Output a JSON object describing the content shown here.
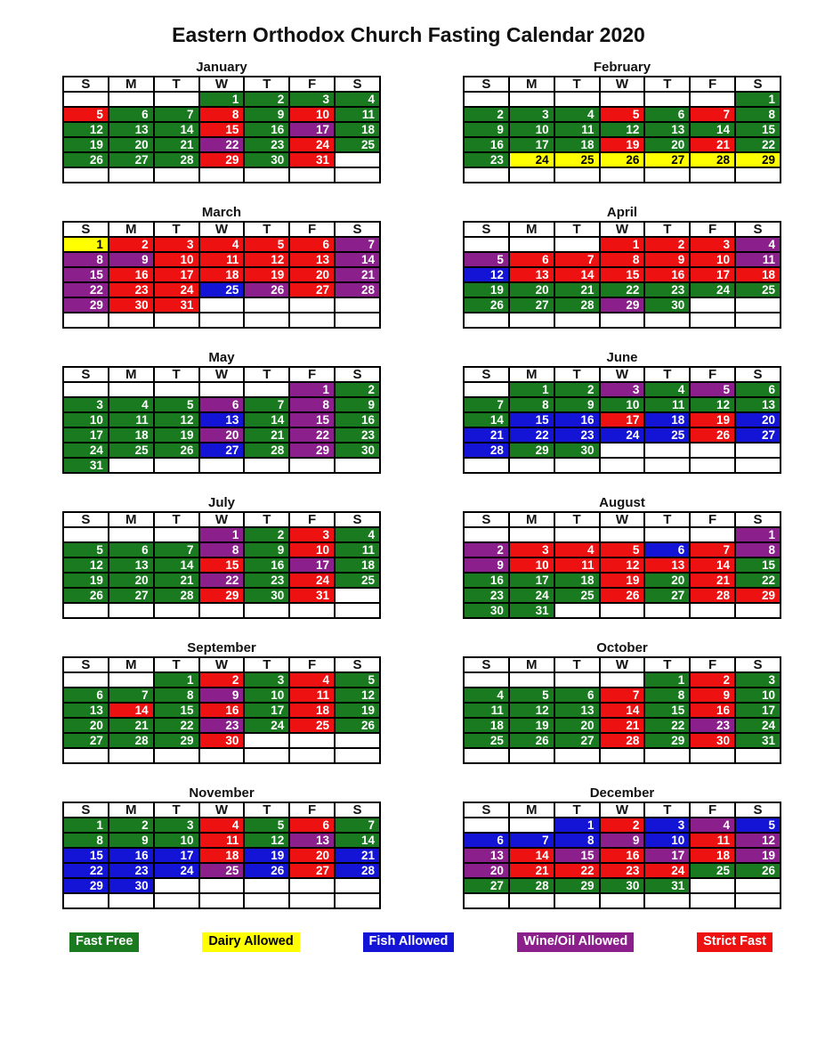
{
  "title": "Eastern Orthodox Church Fasting Calendar 2020",
  "day_headers": [
    "S",
    "M",
    "T",
    "W",
    "T",
    "F",
    "S"
  ],
  "colors": {
    "green": "#1A7A20",
    "yellow": "#FFFF00",
    "blue": "#1414D6",
    "purple": "#8B1F8B",
    "red": "#EE1111"
  },
  "text_colors": {
    "on_dark": "#FFFFFF",
    "on_light": "#000000"
  },
  "legend": [
    {
      "label": "Fast Free",
      "key": "green"
    },
    {
      "label": "Dairy Allowed",
      "key": "yellow"
    },
    {
      "label": "Fish Allowed",
      "key": "blue"
    },
    {
      "label": "Wine/Oil Allowed",
      "key": "purple"
    },
    {
      "label": "Strict Fast",
      "key": "red"
    }
  ],
  "months": [
    {
      "name": "January",
      "weeks": [
        [
          "",
          "",
          "",
          "1|green",
          "2|green",
          "3|green",
          "4|green"
        ],
        [
          "5|red",
          "6|green",
          "7|green",
          "8|red",
          "9|green",
          "10|red",
          "11|green"
        ],
        [
          "12|green",
          "13|green",
          "14|green",
          "15|red",
          "16|green",
          "17|purple",
          "18|green"
        ],
        [
          "19|green",
          "20|green",
          "21|green",
          "22|purple",
          "23|green",
          "24|red",
          "25|green"
        ],
        [
          "26|green",
          "27|green",
          "28|green",
          "29|red",
          "30|green",
          "31|red",
          ""
        ],
        [
          "",
          "",
          "",
          "",
          "",
          "",
          ""
        ]
      ]
    },
    {
      "name": "February",
      "weeks": [
        [
          "",
          "",
          "",
          "",
          "",
          "",
          "1|green"
        ],
        [
          "2|green",
          "3|green",
          "4|green",
          "5|red",
          "6|green",
          "7|red",
          "8|green"
        ],
        [
          "9|green",
          "10|green",
          "11|green",
          "12|green",
          "13|green",
          "14|green",
          "15|green"
        ],
        [
          "16|green",
          "17|green",
          "18|green",
          "19|red",
          "20|green",
          "21|red",
          "22|green"
        ],
        [
          "23|green",
          "24|yellow",
          "25|yellow",
          "26|yellow",
          "27|yellow",
          "28|yellow",
          "29|yellow"
        ],
        [
          "",
          "",
          "",
          "",
          "",
          "",
          ""
        ]
      ]
    },
    {
      "name": "March",
      "weeks": [
        [
          "1|yellow",
          "2|red",
          "3|red",
          "4|red",
          "5|red",
          "6|red",
          "7|purple"
        ],
        [
          "8|purple",
          "9|purple",
          "10|red",
          "11|red",
          "12|red",
          "13|red",
          "14|purple"
        ],
        [
          "15|purple",
          "16|red",
          "17|red",
          "18|red",
          "19|red",
          "20|red",
          "21|purple"
        ],
        [
          "22|purple",
          "23|red",
          "24|red",
          "25|blue",
          "26|purple",
          "27|red",
          "28|purple"
        ],
        [
          "29|purple",
          "30|red",
          "31|red",
          "",
          "",
          "",
          ""
        ],
        [
          "",
          "",
          "",
          "",
          "",
          "",
          ""
        ]
      ]
    },
    {
      "name": "April",
      "weeks": [
        [
          "",
          "",
          "",
          "1|red",
          "2|red",
          "3|red",
          "4|purple"
        ],
        [
          "5|purple",
          "6|red",
          "7|red",
          "8|red",
          "9|red",
          "10|red",
          "11|purple"
        ],
        [
          "12|blue",
          "13|red",
          "14|red",
          "15|red",
          "16|red",
          "17|red",
          "18|red"
        ],
        [
          "19|green",
          "20|green",
          "21|green",
          "22|green",
          "23|green",
          "24|green",
          "25|green"
        ],
        [
          "26|green",
          "27|green",
          "28|green",
          "29|purple",
          "30|green",
          "",
          ""
        ],
        [
          "",
          "",
          "",
          "",
          "",
          "",
          ""
        ]
      ]
    },
    {
      "name": "May",
      "weeks": [
        [
          "",
          "",
          "",
          "",
          "",
          "1|purple",
          "2|green"
        ],
        [
          "3|green",
          "4|green",
          "5|green",
          "6|purple",
          "7|green",
          "8|purple",
          "9|green"
        ],
        [
          "10|green",
          "11|green",
          "12|green",
          "13|blue",
          "14|green",
          "15|purple",
          "16|green"
        ],
        [
          "17|green",
          "18|green",
          "19|green",
          "20|purple",
          "21|green",
          "22|purple",
          "23|green"
        ],
        [
          "24|green",
          "25|green",
          "26|green",
          "27|blue",
          "28|green",
          "29|purple",
          "30|green"
        ],
        [
          "31|green",
          "",
          "",
          "",
          "",
          "",
          ""
        ]
      ]
    },
    {
      "name": "June",
      "weeks": [
        [
          "",
          "1|green",
          "2|green",
          "3|purple",
          "4|green",
          "5|purple",
          "6|green"
        ],
        [
          "7|green",
          "8|green",
          "9|green",
          "10|green",
          "11|green",
          "12|green",
          "13|green"
        ],
        [
          "14|green",
          "15|blue",
          "16|blue",
          "17|red",
          "18|blue",
          "19|red",
          "20|blue"
        ],
        [
          "21|blue",
          "22|blue",
          "23|blue",
          "24|blue",
          "25|blue",
          "26|red",
          "27|blue"
        ],
        [
          "28|blue",
          "29|green",
          "30|green",
          "",
          "",
          "",
          ""
        ],
        [
          "",
          "",
          "",
          "",
          "",
          "",
          ""
        ]
      ]
    },
    {
      "name": "July",
      "weeks": [
        [
          "",
          "",
          "",
          "1|purple",
          "2|green",
          "3|red",
          "4|green"
        ],
        [
          "5|green",
          "6|green",
          "7|green",
          "8|purple",
          "9|green",
          "10|red",
          "11|green"
        ],
        [
          "12|green",
          "13|green",
          "14|green",
          "15|red",
          "16|green",
          "17|purple",
          "18|green"
        ],
        [
          "19|green",
          "20|green",
          "21|green",
          "22|purple",
          "23|green",
          "24|red",
          "25|green"
        ],
        [
          "26|green",
          "27|green",
          "28|green",
          "29|red",
          "30|green",
          "31|red",
          ""
        ],
        [
          "",
          "",
          "",
          "",
          "",
          "",
          ""
        ]
      ]
    },
    {
      "name": "August",
      "weeks": [
        [
          "",
          "",
          "",
          "",
          "",
          "",
          "1|purple"
        ],
        [
          "2|purple",
          "3|red",
          "4|red",
          "5|red",
          "6|blue",
          "7|red",
          "8|purple"
        ],
        [
          "9|purple",
          "10|red",
          "11|red",
          "12|red",
          "13|red",
          "14|red",
          "15|green"
        ],
        [
          "16|green",
          "17|green",
          "18|green",
          "19|red",
          "20|green",
          "21|red",
          "22|green"
        ],
        [
          "23|green",
          "24|green",
          "25|green",
          "26|red",
          "27|green",
          "28|red",
          "29|red"
        ],
        [
          "30|green",
          "31|green",
          "",
          "",
          "",
          "",
          ""
        ]
      ]
    },
    {
      "name": "September",
      "weeks": [
        [
          "",
          "",
          "1|green",
          "2|red",
          "3|green",
          "4|red",
          "5|green"
        ],
        [
          "6|green",
          "7|green",
          "8|green",
          "9|purple",
          "10|green",
          "11|red",
          "12|green"
        ],
        [
          "13|green",
          "14|red",
          "15|green",
          "16|red",
          "17|green",
          "18|red",
          "19|green"
        ],
        [
          "20|green",
          "21|green",
          "22|green",
          "23|purple",
          "24|green",
          "25|red",
          "26|green"
        ],
        [
          "27|green",
          "28|green",
          "29|green",
          "30|red",
          "",
          "",
          ""
        ],
        [
          "",
          "",
          "",
          "",
          "",
          "",
          ""
        ]
      ]
    },
    {
      "name": "October",
      "weeks": [
        [
          "",
          "",
          "",
          "",
          "1|green",
          "2|red",
          "3|green"
        ],
        [
          "4|green",
          "5|green",
          "6|green",
          "7|red",
          "8|green",
          "9|red",
          "10|green"
        ],
        [
          "11|green",
          "12|green",
          "13|green",
          "14|red",
          "15|green",
          "16|red",
          "17|green"
        ],
        [
          "18|green",
          "19|green",
          "20|green",
          "21|red",
          "22|green",
          "23|purple",
          "24|green"
        ],
        [
          "25|green",
          "26|green",
          "27|green",
          "28|red",
          "29|green",
          "30|red",
          "31|green"
        ],
        [
          "",
          "",
          "",
          "",
          "",
          "",
          ""
        ]
      ]
    },
    {
      "name": "November",
      "weeks": [
        [
          "1|green",
          "2|green",
          "3|green",
          "4|red",
          "5|green",
          "6|red",
          "7|green"
        ],
        [
          "8|green",
          "9|green",
          "10|green",
          "11|red",
          "12|green",
          "13|purple",
          "14|green"
        ],
        [
          "15|blue",
          "16|blue",
          "17|blue",
          "18|red",
          "19|blue",
          "20|red",
          "21|blue"
        ],
        [
          "22|blue",
          "23|blue",
          "24|blue",
          "25|purple",
          "26|blue",
          "27|red",
          "28|blue"
        ],
        [
          "29|blue",
          "30|blue",
          "",
          "",
          "",
          "",
          ""
        ],
        [
          "",
          "",
          "",
          "",
          "",
          "",
          ""
        ]
      ]
    },
    {
      "name": "December",
      "weeks": [
        [
          "",
          "",
          "1|blue",
          "2|red",
          "3|blue",
          "4|purple",
          "5|blue"
        ],
        [
          "6|blue",
          "7|blue",
          "8|blue",
          "9|purple",
          "10|blue",
          "11|red",
          "12|purple"
        ],
        [
          "13|purple",
          "14|red",
          "15|purple",
          "16|red",
          "17|purple",
          "18|red",
          "19|purple"
        ],
        [
          "20|purple",
          "21|red",
          "22|red",
          "23|red",
          "24|red",
          "25|green",
          "26|green"
        ],
        [
          "27|green",
          "28|green",
          "29|green",
          "30|green",
          "31|green",
          "",
          ""
        ],
        [
          "",
          "",
          "",
          "",
          "",
          "",
          ""
        ]
      ]
    }
  ]
}
